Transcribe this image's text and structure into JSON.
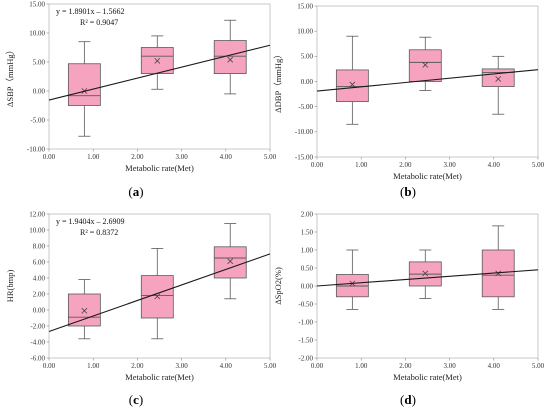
{
  "colors": {
    "box_fill": "#f5a3bf",
    "box_stroke": "#5a5a5a",
    "trend": "#1a1a1a",
    "mean_marker": "#444444"
  },
  "chart_data": [
    {
      "type": "box",
      "panel_label": "a",
      "ylabel": "ΔSBP（mmHg）",
      "xlabel": "Metabolic rate(Met)",
      "xlim": [
        0,
        5
      ],
      "ylim": [
        -10,
        15
      ],
      "xticks": [
        "0.00",
        "1.00",
        "2.00",
        "3.00",
        "4.00",
        "5.00"
      ],
      "yticks": [
        "-10.00",
        "-5.00",
        "0.00",
        "5.00",
        "10.00",
        "15.00"
      ],
      "equation": "y = 1.8901x – 1.5662",
      "r2": "R² = 0.9047",
      "trend": {
        "slope": 1.8901,
        "intercept": -1.5662
      },
      "boxes": [
        {
          "x": 0.8,
          "whisker_low": -7.8,
          "q1": -2.5,
          "median": -0.8,
          "q3": 4.7,
          "whisker_high": 8.5,
          "mean": 0.0
        },
        {
          "x": 2.45,
          "whisker_low": 0.3,
          "q1": 3.0,
          "median": 6.0,
          "q3": 7.5,
          "whisker_high": 9.5,
          "mean": 5.2
        },
        {
          "x": 4.1,
          "whisker_low": -0.5,
          "q1": 3.0,
          "median": 6.0,
          "q3": 8.7,
          "whisker_high": 12.2,
          "mean": 5.4
        }
      ]
    },
    {
      "type": "box",
      "panel_label": "b",
      "ylabel": "ΔDBP（mmHg）",
      "xlabel": "Metabolic rate(Met)",
      "xlim": [
        0,
        5
      ],
      "ylim": [
        -15,
        15
      ],
      "xticks": [
        "0.00",
        "1.00",
        "2.00",
        "3.00",
        "4.00",
        "5.00"
      ],
      "yticks": [
        "-15.00",
        "-10.00",
        "-5.00",
        "0.00",
        "5.00",
        "10.00",
        "15.00"
      ],
      "equation": "",
      "r2": "",
      "trend": {
        "slope": 0.85,
        "intercept": -1.9
      },
      "boxes": [
        {
          "x": 0.8,
          "whisker_low": -8.5,
          "q1": -4.0,
          "median": -1.0,
          "q3": 2.3,
          "whisker_high": 9.0,
          "mean": -0.6
        },
        {
          "x": 2.45,
          "whisker_low": -1.8,
          "q1": 0.0,
          "median": 3.8,
          "q3": 6.3,
          "whisker_high": 8.8,
          "mean": 3.3
        },
        {
          "x": 4.1,
          "whisker_low": -6.5,
          "q1": -1.0,
          "median": 1.8,
          "q3": 2.5,
          "whisker_high": 5.0,
          "mean": 0.5
        }
      ]
    },
    {
      "type": "box",
      "panel_label": "c",
      "ylabel": "HR(bmp)",
      "xlabel": "Metabolic rate(Met)",
      "xlim": [
        0,
        5
      ],
      "ylim": [
        -6,
        12
      ],
      "xticks": [
        "0.00",
        "1.00",
        "2.00",
        "3.00",
        "4.00",
        "5.00"
      ],
      "yticks": [
        "-6.00",
        "-4.00",
        "-2.00",
        "0.00",
        "2.00",
        "4.00",
        "6.00",
        "8.00",
        "10.00",
        "12.00"
      ],
      "equation": "y = 1.9404x – 2.6909",
      "r2": "R² = 0.8372",
      "trend": {
        "slope": 1.9404,
        "intercept": -2.6909
      },
      "boxes": [
        {
          "x": 0.8,
          "whisker_low": -3.6,
          "q1": -2.0,
          "median": -0.9,
          "q3": 2.0,
          "whisker_high": 3.8,
          "mean": -0.1
        },
        {
          "x": 2.45,
          "whisker_low": -3.6,
          "q1": -1.0,
          "median": 1.8,
          "q3": 4.3,
          "whisker_high": 7.7,
          "mean": 1.7
        },
        {
          "x": 4.1,
          "whisker_low": 1.4,
          "q1": 4.0,
          "median": 6.5,
          "q3": 7.9,
          "whisker_high": 10.8,
          "mean": 6.1
        }
      ]
    },
    {
      "type": "box",
      "panel_label": "d",
      "ylabel": "ΔSpO2(%)",
      "xlabel": "Metabolic rate(Met)",
      "xlim": [
        0,
        5
      ],
      "ylim": [
        -2,
        2
      ],
      "xticks": [
        "0.00",
        "1.00",
        "2.00",
        "3.00",
        "4.00",
        "5.00"
      ],
      "yticks": [
        "-2.00",
        "-1.50",
        "-1.00",
        "-0.50",
        "0.00",
        "0.50",
        "1.00",
        "1.50",
        "2.00"
      ],
      "equation": "",
      "r2": "",
      "trend": {
        "slope": 0.09,
        "intercept": 0.0
      },
      "boxes": [
        {
          "x": 0.8,
          "whisker_low": -0.65,
          "q1": -0.3,
          "median": 0.0,
          "q3": 0.32,
          "whisker_high": 1.0,
          "mean": 0.07
        },
        {
          "x": 2.45,
          "whisker_low": -0.35,
          "q1": 0.0,
          "median": 0.33,
          "q3": 0.67,
          "whisker_high": 1.0,
          "mean": 0.35
        },
        {
          "x": 4.1,
          "whisker_low": -0.65,
          "q1": -0.3,
          "median": 0.3,
          "q3": 1.0,
          "whisker_high": 1.67,
          "mean": 0.35
        }
      ]
    }
  ]
}
